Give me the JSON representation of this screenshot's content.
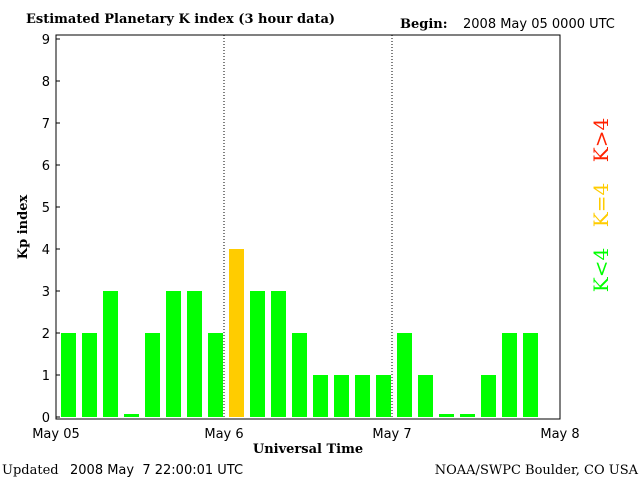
{
  "header": {
    "title": "Estimated Planetary K index (3 hour data)",
    "begin_label": "Begin:",
    "begin_value": "2008 May 05 0000 UTC"
  },
  "footer": {
    "updated_label": "Updated",
    "updated_value": "2008 May  7 22:00:01 UTC",
    "source": "NOAA/SWPC Boulder, CO USA"
  },
  "legend": {
    "items": [
      {
        "label": "K<4",
        "color": "#00ff00"
      },
      {
        "label": "K=4",
        "color": "#ffcc00"
      },
      {
        "label": "K>4",
        "color": "#ff2200"
      }
    ]
  },
  "chart_data": {
    "type": "bar",
    "title": "Estimated Planetary K index (3 hour data)",
    "xlabel": "Universal Time",
    "ylabel": "Kp index",
    "ylim": [
      0,
      9
    ],
    "yticks": [
      "0",
      "1",
      "2",
      "3",
      "4",
      "5",
      "6",
      "7",
      "8",
      "9"
    ],
    "xticks": [
      "May 05",
      "May 6",
      "May 7",
      "May 8"
    ],
    "grid": false,
    "day_separators": "dotted",
    "values": [
      2,
      2,
      3,
      0,
      2,
      3,
      3,
      2,
      4,
      3,
      3,
      2,
      1,
      1,
      1,
      1,
      2,
      1,
      0,
      0,
      1,
      2,
      2
    ],
    "color_rule": {
      "below_4": "#00ff00",
      "equal_4": "#ffcc00",
      "above_4": "#ff2200"
    }
  }
}
